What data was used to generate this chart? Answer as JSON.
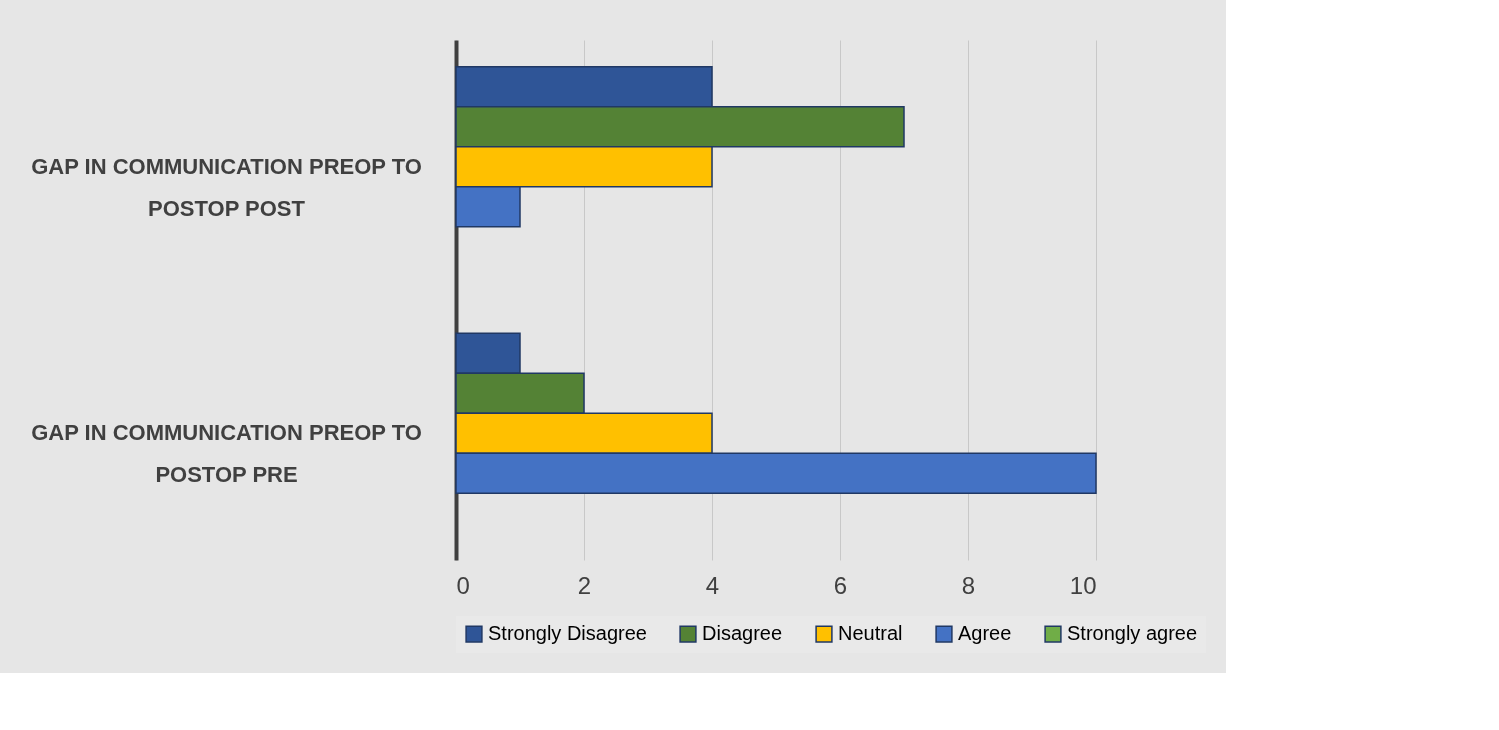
{
  "chart_data": {
    "type": "bar",
    "orientation": "horizontal",
    "categories": [
      "GAP IN COMMUNICATION PREOP TO POSTOP POST",
      "GAP IN COMMUNICATION PREOP TO POSTOP PRE"
    ],
    "series": [
      {
        "name": "Strongly Disagree",
        "color": "#2f5597",
        "values": [
          4,
          1
        ]
      },
      {
        "name": "Disagree",
        "color": "#548235",
        "values": [
          7,
          2
        ]
      },
      {
        "name": "Neutral",
        "color": "#ffc000",
        "values": [
          4,
          4
        ]
      },
      {
        "name": "Agree",
        "color": "#4472c4",
        "values": [
          1,
          10
        ]
      },
      {
        "name": "Strongly agree",
        "color": "#70ad47",
        "values": [
          null,
          null
        ]
      }
    ],
    "xlim": [
      0,
      10
    ],
    "xticks": [
      0,
      2,
      4,
      6,
      8,
      10
    ],
    "grid": "x",
    "legend": "bottom"
  }
}
